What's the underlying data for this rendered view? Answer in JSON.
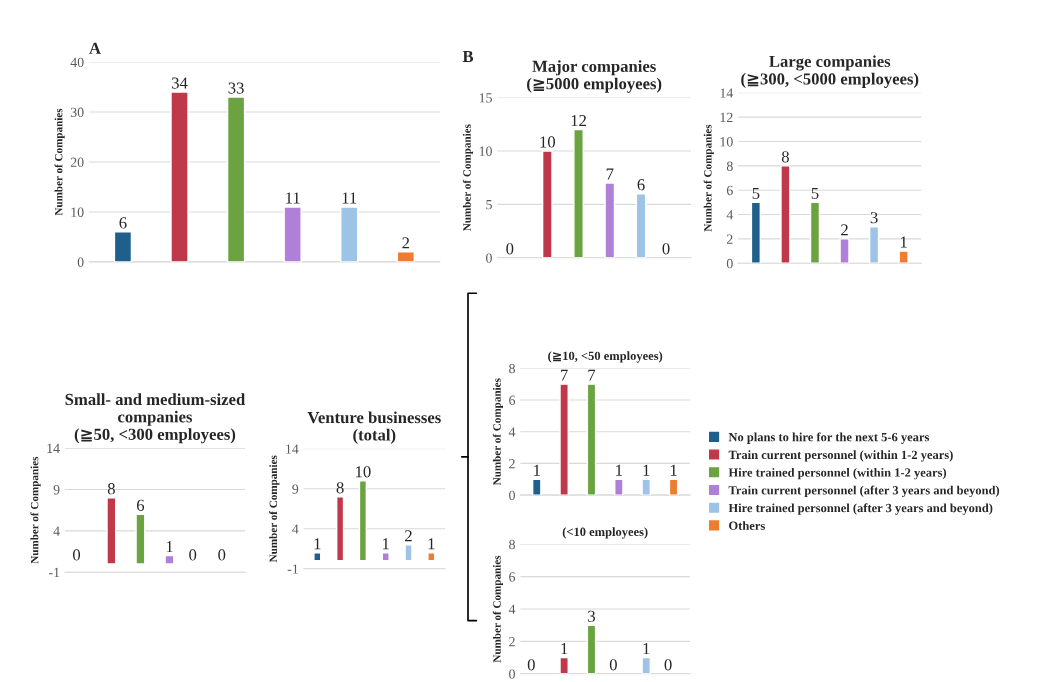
{
  "chart_data": [
    {
      "type": "bar",
      "title": "A",
      "ylabel": "Number of Companies",
      "categories": [
        null,
        null,
        null,
        null,
        null,
        null
      ],
      "ylim": [
        0,
        40
      ],
      "yticks": [
        0,
        10,
        20,
        30,
        40
      ],
      "grid": "y",
      "data_labels": true,
      "legend": false,
      "series": [
        {
          "color": "#1f5f8b",
          "values": [
            6,
            null,
            null,
            null,
            null,
            null
          ]
        },
        {
          "color": "#c0394b",
          "values": [
            null,
            34,
            null,
            null,
            null,
            null
          ]
        },
        {
          "color": "#6aa33f",
          "values": [
            null,
            null,
            33,
            null,
            null,
            null
          ]
        },
        {
          "color": "#b07fd8",
          "values": [
            null,
            null,
            null,
            11,
            null,
            null
          ]
        },
        {
          "color": "#9dc3e6",
          "values": [
            null,
            null,
            null,
            null,
            11,
            null
          ]
        },
        {
          "color": "#ed7d31",
          "values": [
            null,
            null,
            null,
            null,
            null,
            2
          ]
        }
      ]
    },
    {
      "type": "bar",
      "title": "Major companies\n(≧5000 employees)",
      "annotations": [
        "B"
      ],
      "ylabel": "Number of Companies",
      "categories": [
        null,
        null,
        null,
        null,
        null,
        null
      ],
      "ylim": [
        0,
        15
      ],
      "yticks": [
        0,
        5,
        10,
        15
      ],
      "grid": "y",
      "data_labels": true,
      "legend": false,
      "series": [
        {
          "color": "#1f5f8b",
          "values": [
            0,
            null,
            null,
            null,
            null,
            null
          ]
        },
        {
          "color": "#c0394b",
          "values": [
            null,
            10,
            null,
            null,
            null,
            null
          ]
        },
        {
          "color": "#6aa33f",
          "values": [
            null,
            null,
            12,
            null,
            null,
            null
          ]
        },
        {
          "color": "#b07fd8",
          "values": [
            null,
            null,
            null,
            7,
            null,
            null
          ]
        },
        {
          "color": "#9dc3e6",
          "values": [
            null,
            null,
            null,
            null,
            6,
            null
          ]
        },
        {
          "color": "#ed7d31",
          "values": [
            null,
            null,
            null,
            null,
            null,
            0
          ]
        }
      ]
    },
    {
      "type": "bar",
      "title": "Large companies\n(≧300, <5000 employees)",
      "ylabel": "Number of Companies",
      "categories": [
        null,
        null,
        null,
        null,
        null,
        null
      ],
      "ylim": [
        0,
        14
      ],
      "yticks": [
        0,
        2,
        4,
        6,
        8,
        10,
        12,
        14
      ],
      "grid": "y",
      "data_labels": true,
      "legend": false,
      "series": [
        {
          "color": "#1f5f8b",
          "values": [
            5,
            null,
            null,
            null,
            null,
            null
          ]
        },
        {
          "color": "#c0394b",
          "values": [
            null,
            8,
            null,
            null,
            null,
            null
          ]
        },
        {
          "color": "#6aa33f",
          "values": [
            null,
            null,
            5,
            null,
            null,
            null
          ]
        },
        {
          "color": "#b07fd8",
          "values": [
            null,
            null,
            null,
            2,
            null,
            null
          ]
        },
        {
          "color": "#9dc3e6",
          "values": [
            null,
            null,
            null,
            null,
            3,
            null
          ]
        },
        {
          "color": "#ed7d31",
          "values": [
            null,
            null,
            null,
            null,
            null,
            1
          ]
        }
      ]
    },
    {
      "type": "bar",
      "title": "Small- and medium-sized\ncompanies\n(≧50, <300 employees)",
      "ylabel": "Number of Companies",
      "categories": [
        null,
        null,
        null,
        null,
        null,
        null
      ],
      "ylim": [
        -1,
        14
      ],
      "yticks": [
        -1,
        4,
        9,
        14
      ],
      "grid": "y",
      "data_labels": true,
      "legend": false,
      "series": [
        {
          "color": "#1f5f8b",
          "values": [
            0,
            null,
            null,
            null,
            null,
            null
          ]
        },
        {
          "color": "#c0394b",
          "values": [
            null,
            8,
            null,
            null,
            null,
            null
          ]
        },
        {
          "color": "#6aa33f",
          "values": [
            null,
            null,
            6,
            null,
            null,
            null
          ]
        },
        {
          "color": "#b07fd8",
          "values": [
            null,
            null,
            null,
            1,
            null,
            null
          ]
        },
        {
          "color": "#9dc3e6",
          "values": [
            null,
            null,
            null,
            null,
            0,
            null
          ]
        },
        {
          "color": "#ed7d31",
          "values": [
            null,
            null,
            null,
            null,
            null,
            0
          ]
        }
      ]
    },
    {
      "type": "bar",
      "title": "Venture businesses\n(total)",
      "ylabel": "Number of Companies",
      "categories": [
        null,
        null,
        null,
        null,
        null,
        null
      ],
      "ylim": [
        -1,
        14
      ],
      "yticks": [
        -1,
        4,
        9,
        14
      ],
      "grid": "y",
      "data_labels": true,
      "legend": false,
      "series": [
        {
          "color": "#1f5f8b",
          "values": [
            1,
            null,
            null,
            null,
            null,
            null
          ]
        },
        {
          "color": "#c0394b",
          "values": [
            null,
            8,
            null,
            null,
            null,
            null
          ]
        },
        {
          "color": "#6aa33f",
          "values": [
            null,
            null,
            10,
            null,
            null,
            null
          ]
        },
        {
          "color": "#b07fd8",
          "values": [
            null,
            null,
            null,
            1,
            null,
            null
          ]
        },
        {
          "color": "#9dc3e6",
          "values": [
            null,
            null,
            null,
            null,
            2,
            null
          ]
        },
        {
          "color": "#ed7d31",
          "values": [
            null,
            null,
            null,
            null,
            null,
            1
          ]
        }
      ]
    },
    {
      "type": "bar",
      "title": "(≧10, <50 employees)",
      "ylabel": "Number of Companies",
      "categories": [
        null,
        null,
        null,
        null,
        null,
        null
      ],
      "ylim": [
        0,
        8
      ],
      "yticks": [
        0,
        2,
        4,
        6,
        8
      ],
      "grid": "y",
      "data_labels": true,
      "legend": "right",
      "series": [
        {
          "name": "No plans to hire for the next 5-6 years",
          "color": "#1f5f8b",
          "values": [
            1,
            null,
            null,
            null,
            null,
            null
          ]
        },
        {
          "name": "Train current personnel (within 1-2 years)",
          "color": "#c0394b",
          "values": [
            null,
            7,
            null,
            null,
            null,
            null
          ]
        },
        {
          "name": "Hire trained personnel (within 1-2 years)",
          "color": "#6aa33f",
          "values": [
            null,
            null,
            7,
            null,
            null,
            null
          ]
        },
        {
          "name": "Train current personnel (after 3 years and beyond)",
          "color": "#b07fd8",
          "values": [
            null,
            null,
            null,
            1,
            null,
            null
          ]
        },
        {
          "name": "Hire trained personnel (after 3 years and beyond)",
          "color": "#9dc3e6",
          "values": [
            null,
            null,
            null,
            null,
            1,
            null
          ]
        },
        {
          "name": "Others",
          "color": "#ed7d31",
          "values": [
            null,
            null,
            null,
            null,
            null,
            1
          ]
        }
      ]
    },
    {
      "type": "bar",
      "title": "(<10 employees)",
      "ylabel": "Number of Companies",
      "categories": [
        null,
        null,
        null,
        null,
        null,
        null
      ],
      "ylim": [
        0,
        8
      ],
      "yticks": [
        0,
        2,
        4,
        6,
        8
      ],
      "grid": "y",
      "data_labels": true,
      "legend": false,
      "series": [
        {
          "color": "#1f5f8b",
          "values": [
            0,
            null,
            null,
            null,
            null,
            null
          ]
        },
        {
          "color": "#c0394b",
          "values": [
            null,
            1,
            null,
            null,
            null,
            null
          ]
        },
        {
          "color": "#6aa33f",
          "values": [
            null,
            null,
            3,
            null,
            null,
            null
          ]
        },
        {
          "color": "#b07fd8",
          "values": [
            null,
            null,
            null,
            0,
            null,
            null
          ]
        },
        {
          "color": "#9dc3e6",
          "values": [
            null,
            null,
            null,
            null,
            1,
            null
          ]
        },
        {
          "color": "#ed7d31",
          "values": [
            null,
            null,
            null,
            null,
            null,
            0
          ]
        }
      ]
    }
  ]
}
